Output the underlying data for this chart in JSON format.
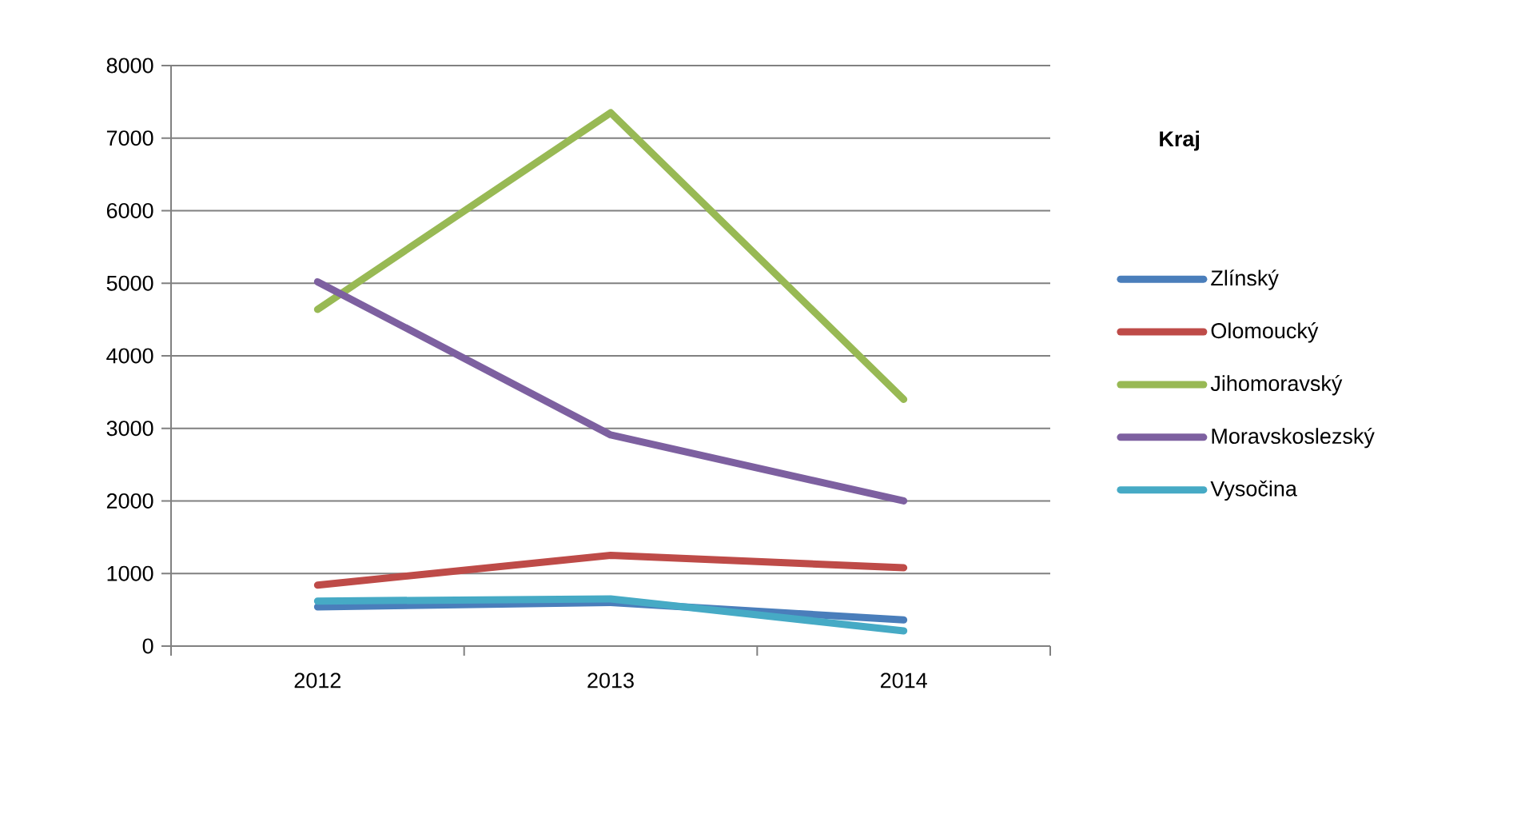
{
  "chart_data": {
    "type": "line",
    "categories": [
      "2012",
      "2013",
      "2014"
    ],
    "legend_title": "Kraj",
    "legend": "right",
    "grid": "y",
    "marker": "none",
    "line_style": "solid",
    "ylim": [
      0,
      8000
    ],
    "yticks": [
      0,
      1000,
      2000,
      3000,
      4000,
      5000,
      6000,
      7000,
      8000
    ],
    "series": [
      {
        "name": "Zlínský",
        "color": "#4a7ebb",
        "values": [
          540,
          600,
          360
        ]
      },
      {
        "name": "Olomoucký",
        "color": "#be4b48",
        "values": [
          840,
          1250,
          1080
        ]
      },
      {
        "name": "Jihomoravský",
        "color": "#98b954",
        "values": [
          4640,
          7350,
          3400
        ]
      },
      {
        "name": "Moravskoslezský",
        "color": "#7d60a0",
        "values": [
          5020,
          2910,
          2000
        ]
      },
      {
        "name": "Vysočina",
        "color": "#46aac5",
        "values": [
          620,
          650,
          210
        ]
      }
    ]
  }
}
